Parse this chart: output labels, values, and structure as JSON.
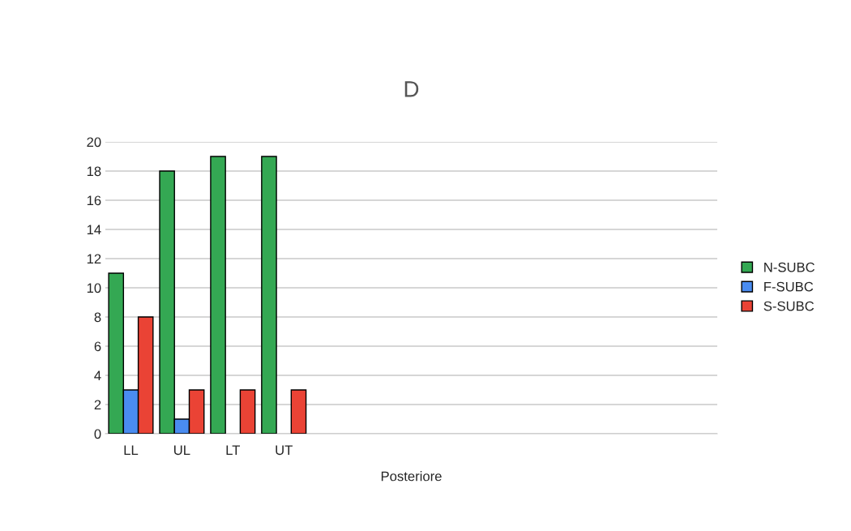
{
  "chart_data": {
    "type": "bar",
    "title": "D",
    "xlabel": "Posteriore",
    "categories": [
      "LL",
      "UL",
      "LT",
      "UT",
      null,
      null,
      null,
      null,
      null,
      null,
      null,
      null
    ],
    "series": [
      {
        "name": "N-SUBC",
        "color": "#34a853",
        "values": [
          11,
          18,
          19,
          19,
          null,
          null,
          null,
          null,
          null,
          null,
          null,
          null
        ]
      },
      {
        "name": "F-SUBC",
        "color": "#4a8cf0",
        "values": [
          3,
          1,
          null,
          null,
          null,
          null,
          null,
          null,
          null,
          null,
          null,
          null
        ]
      },
      {
        "name": "S-SUBC",
        "color": "#ea4335",
        "values": [
          8,
          3,
          3,
          3,
          null,
          null,
          null,
          null,
          null,
          null,
          null,
          null
        ]
      }
    ],
    "ylim": [
      0,
      20
    ],
    "yticks": [
      0,
      2,
      4,
      6,
      8,
      10,
      12,
      14,
      16,
      18,
      20
    ],
    "grid": "y",
    "legend": "right"
  }
}
